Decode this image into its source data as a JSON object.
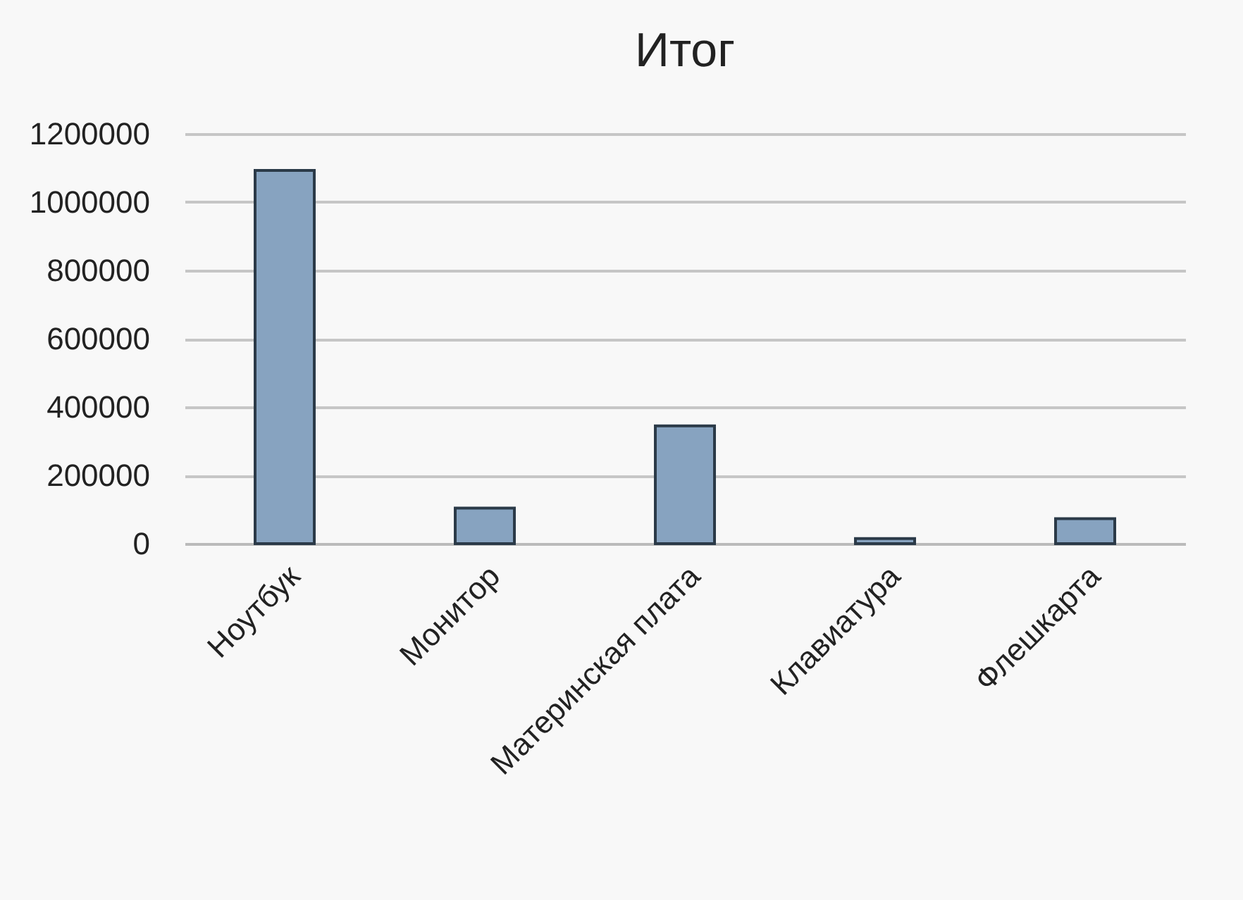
{
  "chart_data": {
    "type": "bar",
    "title": "Итог",
    "categories": [
      "Ноутбук",
      "Монитор",
      "Материнская плата",
      "Клавиатура",
      "Флешкарта"
    ],
    "values": [
      1093000,
      104000,
      345000,
      15000,
      73000
    ],
    "color": "#87a3c0",
    "ylim": [
      0,
      1200000
    ],
    "yticks": [
      0,
      200000,
      400000,
      600000,
      800000,
      1000000,
      1200000
    ],
    "grid": "y"
  }
}
